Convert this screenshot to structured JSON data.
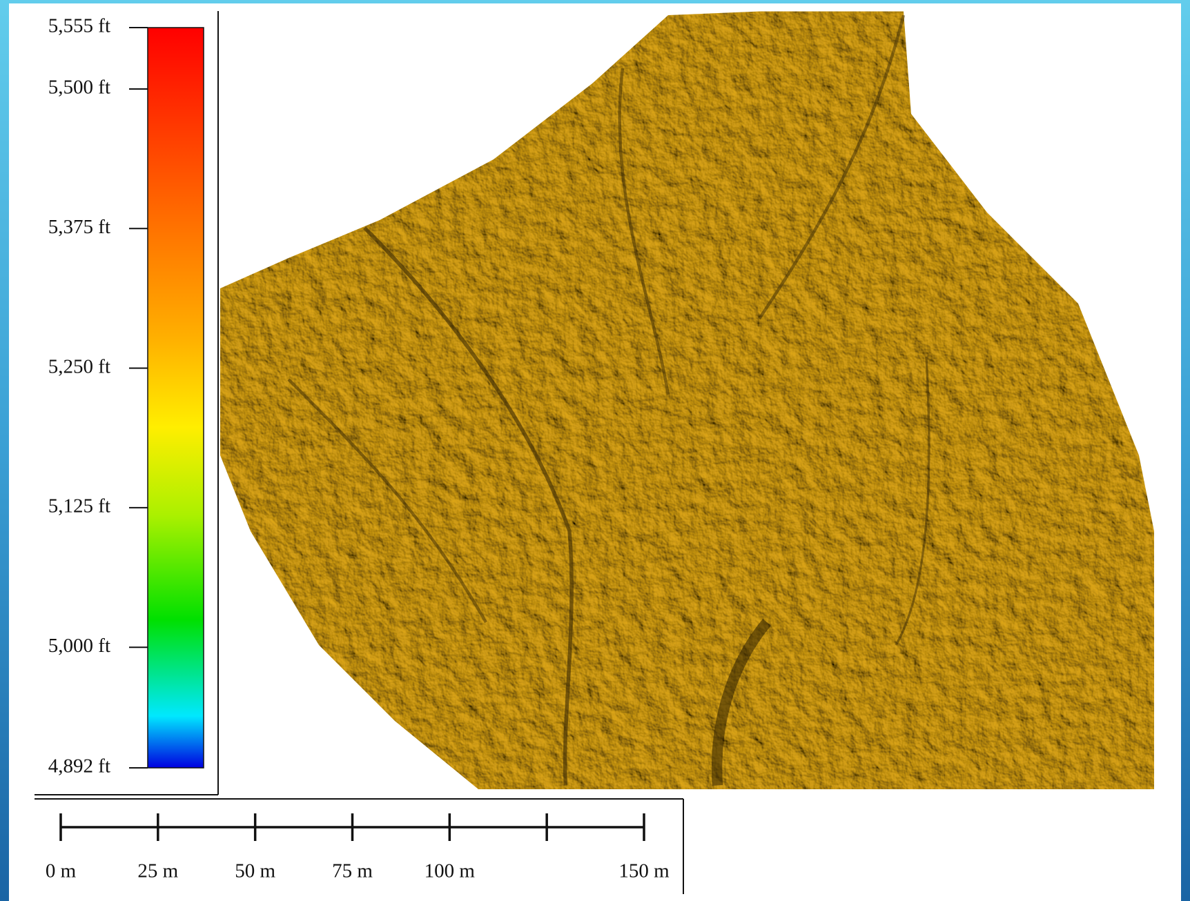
{
  "elevation_legend": {
    "ticks": [
      {
        "value": 5555,
        "label": "5,555 ft"
      },
      {
        "value": 5500,
        "label": "5,500 ft"
      },
      {
        "value": 5375,
        "label": "5,375 ft"
      },
      {
        "value": 5250,
        "label": "5,250 ft"
      },
      {
        "value": 5125,
        "label": "5,125 ft"
      },
      {
        "value": 5000,
        "label": "5,000 ft"
      },
      {
        "value": 4892,
        "label": "4,892 ft"
      }
    ]
  },
  "scale_bar": {
    "ticks": [
      {
        "value": 0,
        "label": "0 m"
      },
      {
        "value": 25,
        "label": "25 m"
      },
      {
        "value": 50,
        "label": "50 m"
      },
      {
        "value": 75,
        "label": "75 m"
      },
      {
        "value": 100,
        "label": "100 m"
      },
      {
        "value": 125,
        "label": null
      },
      {
        "value": 150,
        "label": "150 m"
      }
    ]
  }
}
